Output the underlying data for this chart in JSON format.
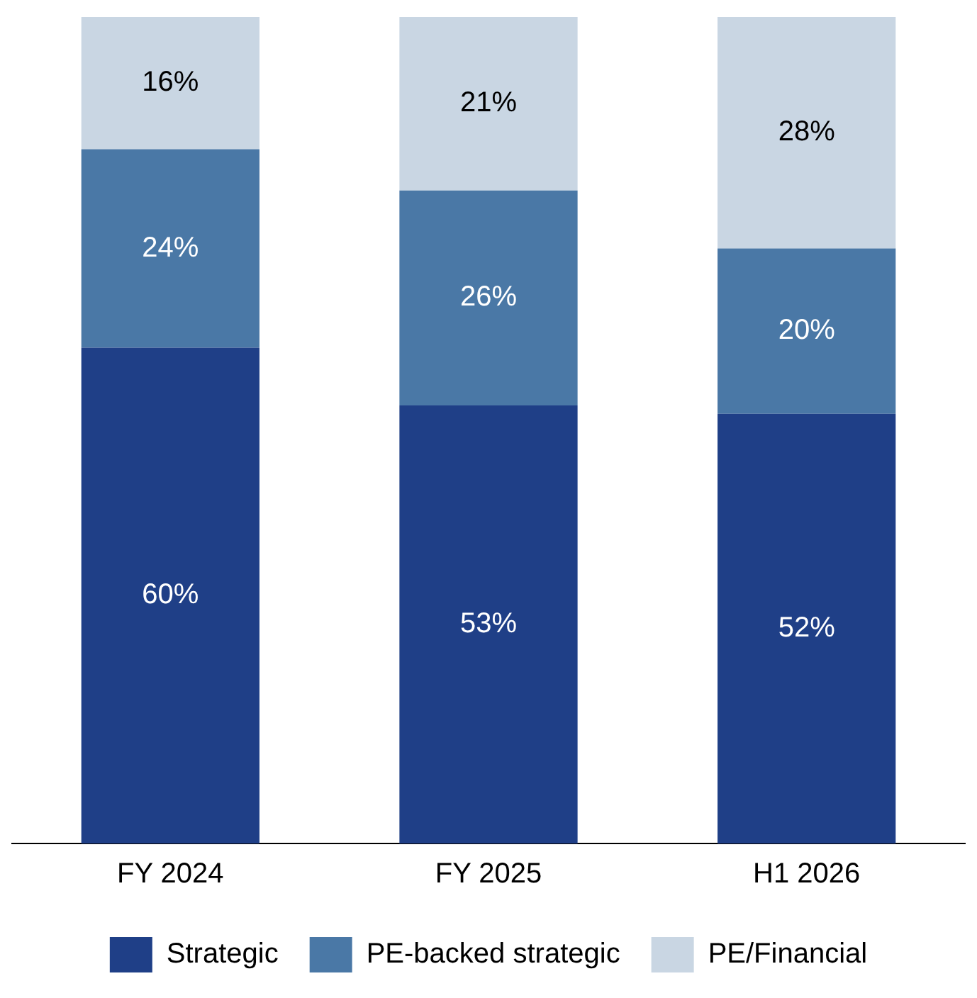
{
  "chart_data": {
    "type": "bar",
    "stacked": true,
    "legend": "bottom",
    "categories": [
      "FY 2024",
      "FY 2025",
      "H1 2026"
    ],
    "series": [
      {
        "name": "Strategic",
        "color": "#1f3f87",
        "values": [
          60,
          53,
          52
        ],
        "value_labels": [
          "60%",
          "53%",
          "52%"
        ]
      },
      {
        "name": "PE-backed strategic",
        "color": "#4a78a6",
        "values": [
          24,
          26,
          20
        ],
        "value_labels": [
          "24%",
          "26%",
          "20%"
        ]
      },
      {
        "name": "PE/Financial",
        "color": "#c9d6e3",
        "values": [
          16,
          21,
          28
        ],
        "value_labels": [
          "16%",
          "21%",
          "28%"
        ]
      }
    ]
  }
}
